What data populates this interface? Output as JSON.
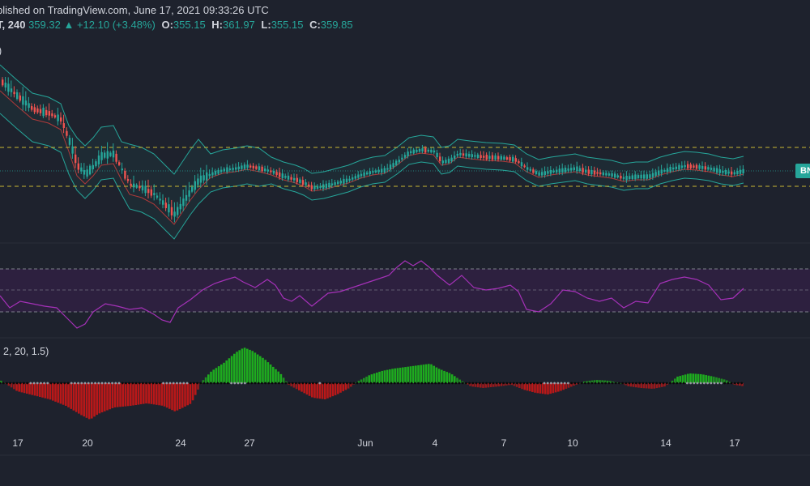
{
  "header": {
    "published": "blished on TradingView.com, June 17, 2021 09:33:26 UTC",
    "symbol_partial": "T,",
    "interval": "240",
    "last_price": "359.32",
    "change_arrow": "▲",
    "change": "+12.10 (+3.48%)",
    "ohlc": [
      {
        "label": "O:",
        "value": "355.15"
      },
      {
        "label": "H:",
        "value": "361.97"
      },
      {
        "label": "L:",
        "value": "355.15"
      },
      {
        "label": "C:",
        "value": "359.85"
      }
    ]
  },
  "panes": {
    "main_label": ")",
    "squeeze_label": "2, 20, 1.5)"
  },
  "price_tag": "BN",
  "colors": {
    "background": "#1e222d",
    "up": "#26a69a",
    "down": "#ef5350",
    "bb_band": "#26a69a",
    "bb_basis": "#b03a3a",
    "level_line": "#c9b832",
    "rsi_line": "#a531b8",
    "rsi_band": "#3b1f4f",
    "hist_green": "#1fb31f",
    "hist_red": "#c21818",
    "squeeze_dot": "#9598a1"
  },
  "chart_data": {
    "type": "candlestick",
    "x_ticks": [
      "17",
      "20",
      "24",
      "27",
      "Jun",
      "4",
      "7",
      "10",
      "14",
      "17"
    ],
    "panes": [
      "Price with Bollinger Bands",
      "RSI",
      "Squeeze Momentum"
    ]
  }
}
